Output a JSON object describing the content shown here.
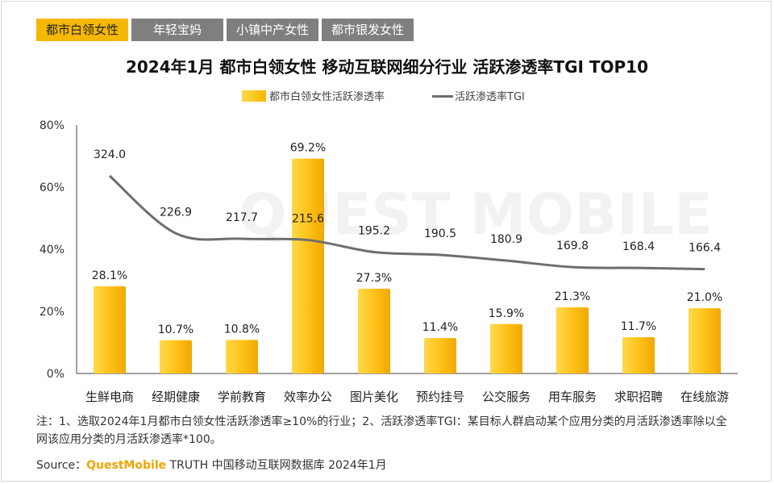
{
  "tabs": [
    {
      "label": "都市白领女性",
      "active": true
    },
    {
      "label": "年轻宝妈",
      "active": false
    },
    {
      "label": "小镇中产女性",
      "active": false
    },
    {
      "label": "都市银发女性",
      "active": false
    }
  ],
  "watermark": "QUEST MOBILE",
  "note": "注：1、选取2024年1月都市白领女性活跃渗透率≥10%的行业；2、活跃渗透率TGI：某目标人群启动某个应用分类的月活跃渗透率除以全网该应用分类的月活跃渗透率*100。",
  "source": {
    "prefix": "Source：",
    "brand": "QuestMobile",
    "rest": " TRUTH 中国移动互联网数据库 2024年1月"
  },
  "colors": {
    "bar": "#f5b800",
    "bar_light": "#ffd94a",
    "line": "#6e6e6e",
    "tab_active": "#f5b800",
    "tab_inactive": "#7f7f7f"
  },
  "chart_data": {
    "type": "bar",
    "title": "2024年1月 都市白领女性 移动互联网细分行业 活跃渗透率TGI TOP10",
    "categories": [
      "生鲜电商",
      "经期健康",
      "学前教育",
      "效率办公",
      "图片美化",
      "预约挂号",
      "公交服务",
      "用车服务",
      "求职招聘",
      "在线旅游"
    ],
    "series": [
      {
        "name": "都市白领女性活跃渗透率",
        "type": "bar",
        "axis": "left",
        "values": [
          28.1,
          10.7,
          10.8,
          69.2,
          27.3,
          11.4,
          15.9,
          21.3,
          11.7,
          21.0
        ],
        "labels": [
          "28.1%",
          "10.7%",
          "10.8%",
          "69.2%",
          "27.3%",
          "11.4%",
          "15.9%",
          "21.3%",
          "11.7%",
          "21.0%"
        ]
      },
      {
        "name": "活跃渗透率TGI",
        "type": "line",
        "axis": "right",
        "values": [
          324.0,
          226.9,
          217.7,
          215.6,
          195.2,
          190.5,
          180.9,
          169.8,
          168.4,
          166.4
        ],
        "labels": [
          "324.0",
          "226.9",
          "217.7",
          "215.6",
          "195.2",
          "190.5",
          "180.9",
          "169.8",
          "168.4",
          "166.4"
        ]
      }
    ],
    "ylim": [
      0,
      80
    ],
    "yticks": [
      "0%",
      "20%",
      "40%",
      "60%",
      "80%"
    ],
    "ytick_values": [
      0,
      20,
      40,
      60,
      80
    ],
    "y2lim": [
      -10,
      410
    ]
  }
}
